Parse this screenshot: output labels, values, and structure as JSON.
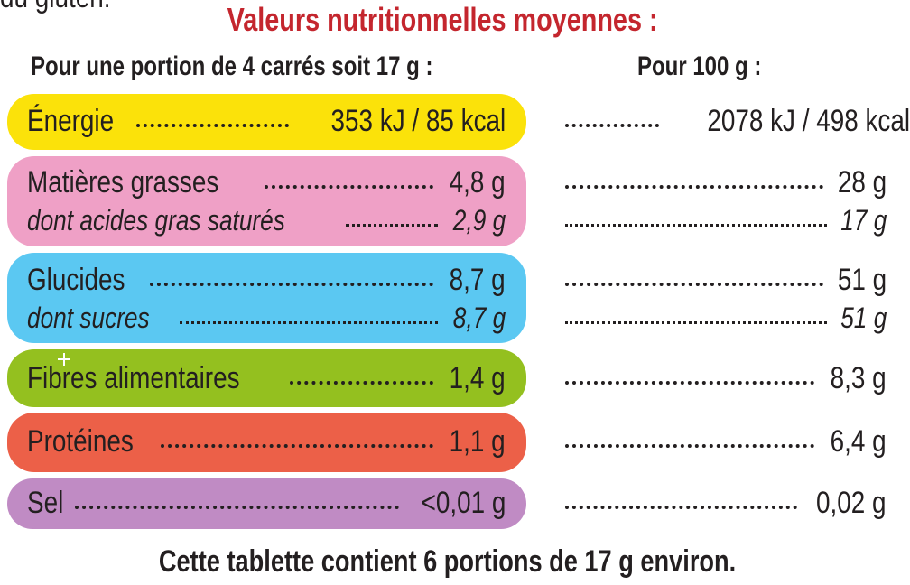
{
  "cut_text": "du gluten.",
  "title": "Valeurs nutritionnelles moyennes :",
  "colors": {
    "title": "#c4262e",
    "energy": "#fbe20a",
    "fat": "#efa0c6",
    "carbs": "#5bc8f2",
    "fibre": "#94c01f",
    "protein": "#ec6048",
    "salt": "#c08bc4"
  },
  "headers": {
    "portion": "Pour une portion de 4 carrés soit 17 g :",
    "per100": "Pour 100 g :"
  },
  "rows": [
    {
      "label": "Énergie",
      "portion": "353 kJ / 85 kcal",
      "per100": "2078 kJ / 498 kcal"
    },
    {
      "label": "Matières grasses",
      "portion": "4,8 g",
      "per100": "28 g"
    },
    {
      "label": "dont acides gras saturés",
      "portion": "2,9 g",
      "per100": "17 g"
    },
    {
      "label": "Glucides",
      "portion": "8,7 g",
      "per100": "51 g"
    },
    {
      "label": "dont sucres",
      "portion": "8,7 g",
      "per100": "51 g"
    },
    {
      "label": "Fibres alimentaires",
      "portion": "1,4 g",
      "per100": "8,3 g"
    },
    {
      "label": "Protéines",
      "portion": "1,1 g",
      "per100": "6,4 g"
    },
    {
      "label": "Sel",
      "portion": "<0,01 g",
      "per100": "0,02 g"
    }
  ],
  "footer": "Cette tablette contient 6 portions de 17 g environ."
}
